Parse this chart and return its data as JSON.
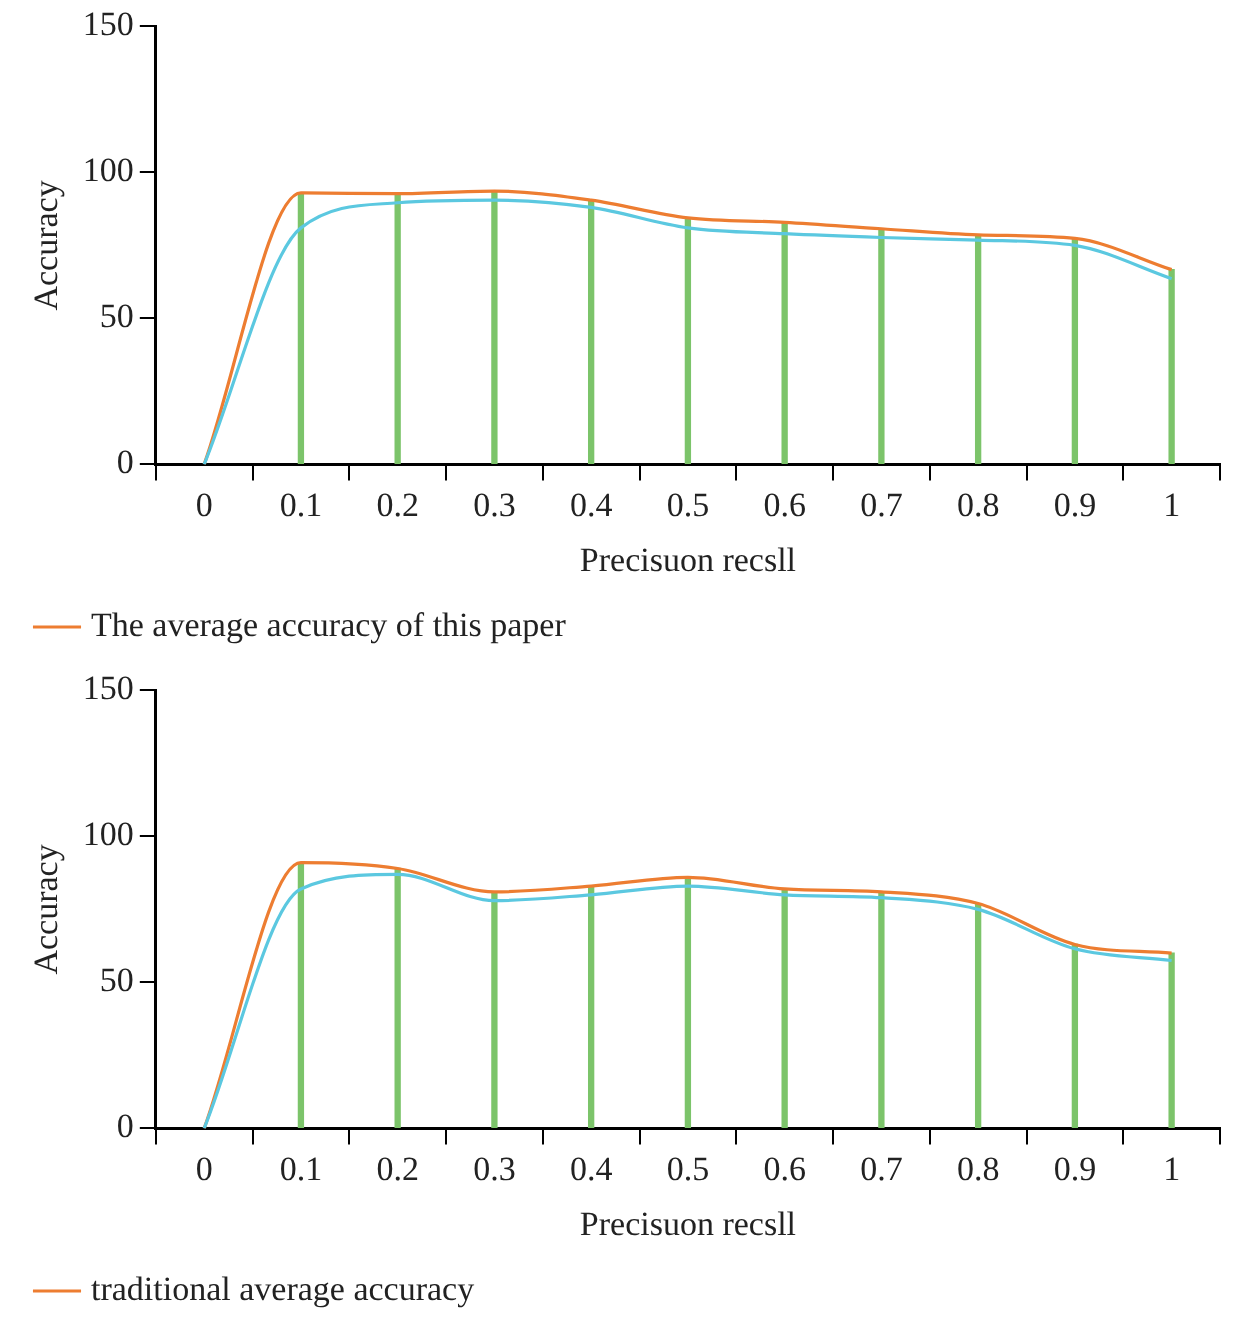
{
  "chart_data": [
    {
      "type": "line",
      "xlabel": "Precisuon recsll",
      "ylabel": "Accuracy",
      "categories": [
        "0",
        "0.1",
        "0.2",
        "0.3",
        "0.4",
        "0.5",
        "0.6",
        "0.7",
        "0.8",
        "0.9",
        "1"
      ],
      "ylim": [
        0,
        150
      ],
      "yticks": [
        0,
        50,
        100,
        150
      ],
      "grid": false,
      "legend": "bottom",
      "marker": "none",
      "series": [
        {
          "type": "bar",
          "color": "#7cc46a",
          "values": [
            null,
            93,
            92.7,
            93.6,
            90.5,
            84.4,
            82.9,
            80.7,
            78.6,
            77.4,
            66.7
          ]
        },
        {
          "color": "#5bc8e0",
          "values": [
            0,
            81,
            89.6,
            90.5,
            88,
            81,
            79,
            77.7,
            76.8,
            75,
            63.6
          ]
        },
        {
          "name": "The average accuracy of this paper",
          "color": "#ed7d31",
          "values": [
            0,
            93,
            92.7,
            93.6,
            90.5,
            84.4,
            82.9,
            80.7,
            78.6,
            77.4,
            66.7
          ]
        }
      ]
    },
    {
      "type": "line",
      "xlabel": "Precisuon recsll",
      "ylabel": "Accuracy",
      "categories": [
        "0",
        "0.1",
        "0.2",
        "0.3",
        "0.4",
        "0.5",
        "0.6",
        "0.7",
        "0.8",
        "0.9",
        "1"
      ],
      "ylim": [
        0,
        150
      ],
      "yticks": [
        0,
        50,
        100,
        150
      ],
      "grid": false,
      "legend": "bottom",
      "marker": "none",
      "series": [
        {
          "type": "bar",
          "color": "#7cc46a",
          "values": [
            null,
            91,
            89,
            81,
            83,
            86,
            82,
            81,
            77,
            63,
            60
          ]
        },
        {
          "color": "#5bc8e0",
          "values": [
            0,
            82,
            87,
            78,
            80,
            83,
            80,
            79,
            75,
            61.5,
            57.5
          ]
        },
        {
          "name": "traditional average accuracy",
          "color": "#ed7d31",
          "values": [
            0,
            91,
            89,
            81,
            83,
            86,
            82,
            81,
            77,
            63,
            60
          ]
        }
      ]
    }
  ]
}
